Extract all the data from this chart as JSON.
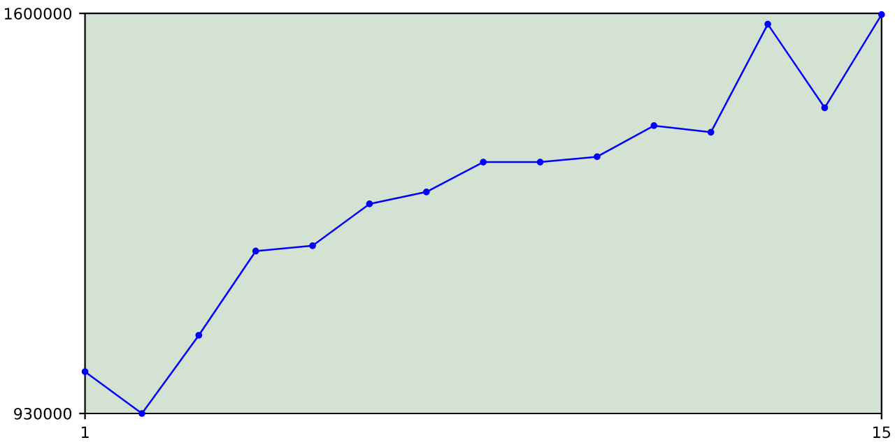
{
  "chart_data": {
    "type": "line",
    "x": [
      1,
      2,
      3,
      4,
      5,
      6,
      7,
      8,
      9,
      10,
      11,
      12,
      13,
      14,
      15
    ],
    "series": [
      {
        "color": "#0000ff",
        "values": [
          1000000,
          930000,
          1061000,
          1202000,
          1211000,
          1281000,
          1301000,
          1351000,
          1351000,
          1360000,
          1412000,
          1401000,
          1582000,
          1442000,
          1598000
        ]
      }
    ],
    "xlim": [
      1,
      15
    ],
    "xticks": [
      1,
      15
    ],
    "ylim": [
      930000,
      1600000
    ],
    "yticks": [
      930000,
      1600000
    ],
    "marker": "circle",
    "line_style": "solid"
  }
}
